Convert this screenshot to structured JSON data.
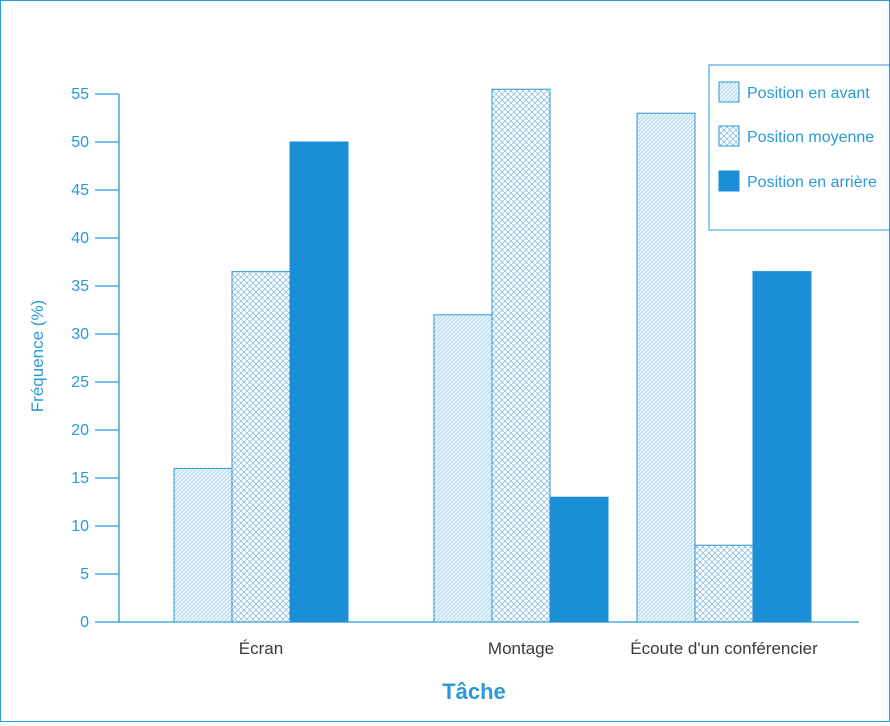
{
  "chart_data": {
    "type": "bar",
    "xlabel": "Tâche",
    "ylabel": "Fréquence (%)",
    "categories": [
      "Écran",
      "Montage",
      "Écoute d'un conférencier"
    ],
    "series": [
      {
        "name": "Position en avant",
        "values": [
          16,
          32,
          53
        ],
        "pattern": "light-dots"
      },
      {
        "name": "Position moyenne",
        "values": [
          36.5,
          55.5,
          8
        ],
        "pattern": "crosshatch"
      },
      {
        "name": "Position en arrière",
        "values": [
          50,
          13,
          36.5
        ],
        "pattern": "solid"
      }
    ],
    "ylim": [
      0,
      55
    ],
    "yticks": [
      0,
      5,
      10,
      15,
      20,
      25,
      30,
      35,
      40,
      45,
      50,
      55
    ],
    "legend_position": "top-right",
    "grid": false,
    "colors": {
      "axis": "#2a9ad6",
      "solid": "#1a8fd6",
      "label": "#2a9ad6",
      "text": "#3a3a3a"
    }
  }
}
